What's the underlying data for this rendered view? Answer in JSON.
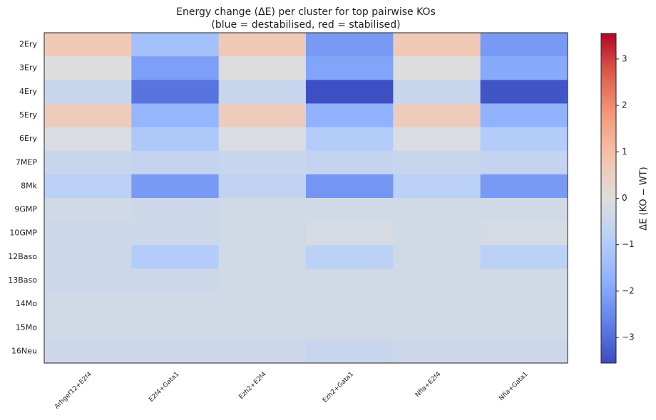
{
  "chart_data": {
    "type": "heatmap",
    "title": "Energy change (ΔE) per cluster for top pairwise KOs",
    "subtitle": "(blue = destabilised, red = stabilised)",
    "categories": [
      "Arhgef12+E2f4",
      "E2f4+Gata1",
      "Ezh2+E2f4",
      "Ezh2+Gata1",
      "Nfia+E2f4",
      "Nfia+Gata1"
    ],
    "rows": [
      "2Ery",
      "3Ery",
      "4Ery",
      "5Ery",
      "6Ery",
      "7MEP",
      "8Mk",
      "9GMP",
      "10GMP",
      "12Baso",
      "13Baso",
      "14Mo",
      "15Mo",
      "16Neu"
    ],
    "values": [
      [
        0.7,
        -1.3,
        0.7,
        -2.2,
        0.7,
        -2.2
      ],
      [
        0.0,
        -2.1,
        0.0,
        -2.0,
        0.0,
        -1.9
      ],
      [
        -0.5,
        -2.9,
        -0.5,
        -3.5,
        -0.5,
        -3.4
      ],
      [
        0.6,
        -1.6,
        0.6,
        -1.7,
        0.6,
        -1.7
      ],
      [
        -0.1,
        -1.1,
        -0.1,
        -1.0,
        -0.1,
        -1.0
      ],
      [
        -0.5,
        -0.6,
        -0.5,
        -0.6,
        -0.5,
        -0.6
      ],
      [
        -0.8,
        -2.2,
        -0.7,
        -2.3,
        -0.8,
        -2.2
      ],
      [
        -0.3,
        -0.4,
        -0.3,
        -0.3,
        -0.3,
        -0.3
      ],
      [
        -0.4,
        -0.4,
        -0.3,
        -0.2,
        -0.3,
        -0.2
      ],
      [
        -0.4,
        -1.0,
        -0.3,
        -0.8,
        -0.3,
        -0.8
      ],
      [
        -0.4,
        -0.4,
        -0.3,
        -0.3,
        -0.3,
        -0.3
      ],
      [
        -0.3,
        -0.3,
        -0.3,
        -0.3,
        -0.3,
        -0.3
      ],
      [
        -0.3,
        -0.3,
        -0.3,
        -0.3,
        -0.3,
        -0.3
      ],
      [
        -0.4,
        -0.4,
        -0.4,
        -0.5,
        -0.4,
        -0.4
      ]
    ],
    "colormap": "coolwarm",
    "clim": [
      -3.55,
      3.55
    ],
    "cticks": [
      {
        "value": -3,
        "label": "−3"
      },
      {
        "value": -2,
        "label": "−2"
      },
      {
        "value": -1,
        "label": "−1"
      },
      0,
      1,
      2,
      3
    ],
    "colorbar_label": "ΔE (KO − WT)"
  }
}
